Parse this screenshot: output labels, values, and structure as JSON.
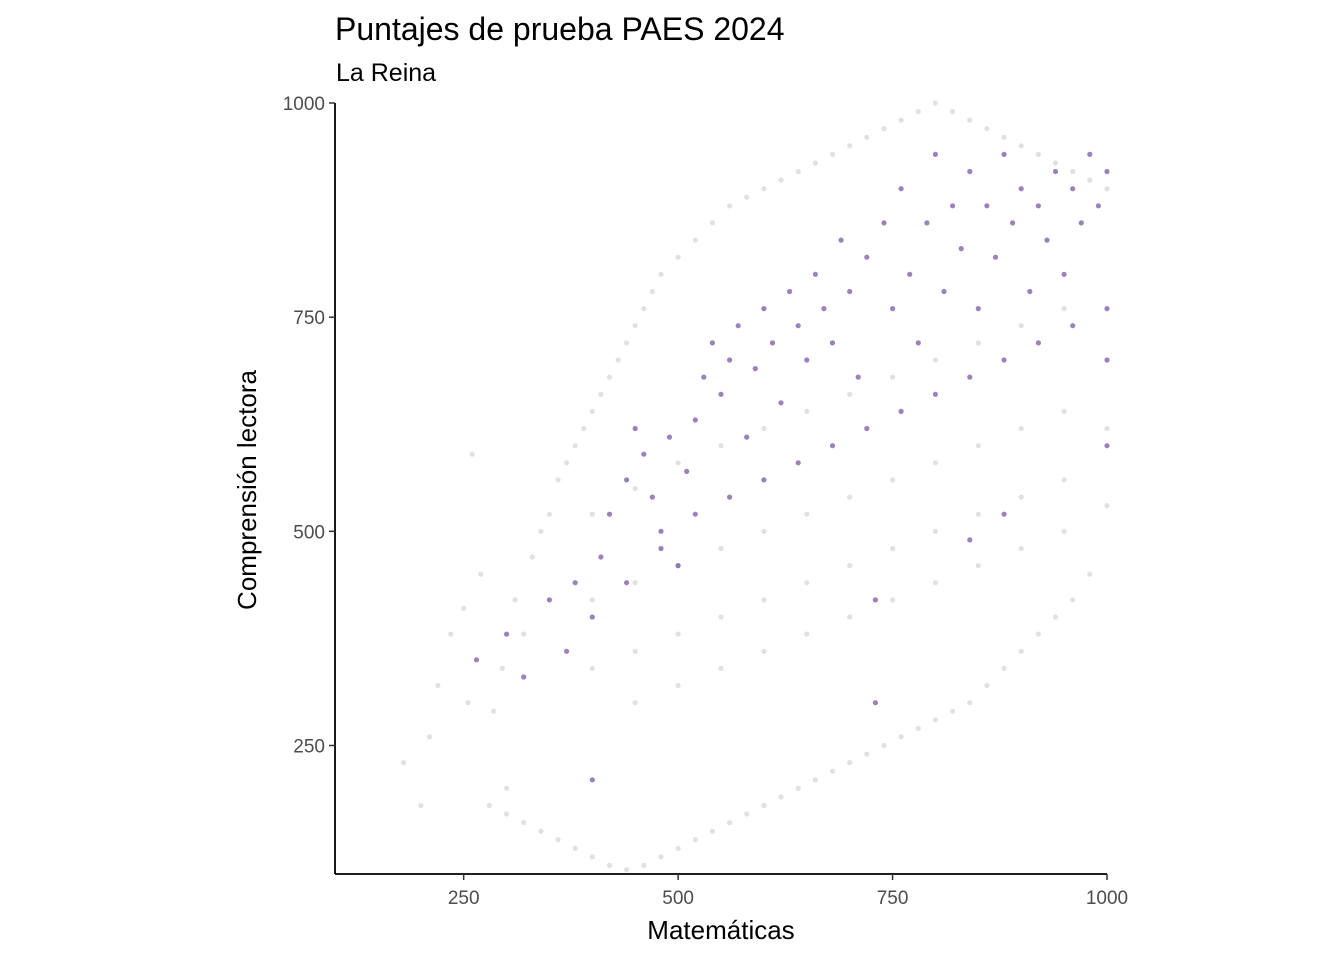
{
  "chart_data": {
    "type": "scatter",
    "title": "Puntajes de prueba PAES 2024",
    "subtitle": "La Reina",
    "xlabel": "Matemáticas",
    "ylabel": "Comprensión lectora",
    "xlim": [
      100,
      1000
    ],
    "ylim": [
      100,
      1000
    ],
    "x_ticks": [
      250,
      500,
      750,
      1000
    ],
    "y_ticks": [
      250,
      500,
      750,
      1000
    ],
    "grid": false,
    "legend": "none",
    "colors": {
      "highlight": "#5a2d8c",
      "background": "#c8c8c8",
      "axis": "#000000",
      "tick_label": "#4d4d4d"
    },
    "series": [
      {
        "role": "background-all-communes",
        "points": [
          [
            180,
            230
          ],
          [
            200,
            180
          ],
          [
            210,
            260
          ],
          [
            220,
            320
          ],
          [
            235,
            380
          ],
          [
            250,
            410
          ],
          [
            255,
            300
          ],
          [
            260,
            590
          ],
          [
            270,
            450
          ],
          [
            285,
            290
          ],
          [
            295,
            340
          ],
          [
            300,
            200
          ],
          [
            310,
            420
          ],
          [
            320,
            380
          ],
          [
            330,
            470
          ],
          [
            340,
            500
          ],
          [
            350,
            520
          ],
          [
            360,
            560
          ],
          [
            370,
            580
          ],
          [
            380,
            600
          ],
          [
            390,
            620
          ],
          [
            400,
            640
          ],
          [
            410,
            660
          ],
          [
            420,
            680
          ],
          [
            430,
            700
          ],
          [
            440,
            720
          ],
          [
            450,
            740
          ],
          [
            460,
            760
          ],
          [
            470,
            780
          ],
          [
            480,
            800
          ],
          [
            500,
            820
          ],
          [
            520,
            840
          ],
          [
            540,
            860
          ],
          [
            560,
            880
          ],
          [
            580,
            890
          ],
          [
            600,
            900
          ],
          [
            620,
            910
          ],
          [
            640,
            920
          ],
          [
            660,
            930
          ],
          [
            680,
            940
          ],
          [
            700,
            950
          ],
          [
            720,
            960
          ],
          [
            740,
            970
          ],
          [
            760,
            980
          ],
          [
            780,
            990
          ],
          [
            800,
            1000
          ],
          [
            820,
            990
          ],
          [
            840,
            980
          ],
          [
            860,
            970
          ],
          [
            880,
            960
          ],
          [
            900,
            950
          ],
          [
            920,
            940
          ],
          [
            940,
            930
          ],
          [
            960,
            920
          ],
          [
            980,
            910
          ],
          [
            1000,
            900
          ],
          [
            1000,
            620
          ],
          [
            1000,
            530
          ],
          [
            980,
            450
          ],
          [
            960,
            420
          ],
          [
            940,
            400
          ],
          [
            920,
            380
          ],
          [
            900,
            360
          ],
          [
            880,
            340
          ],
          [
            860,
            320
          ],
          [
            840,
            300
          ],
          [
            820,
            290
          ],
          [
            800,
            280
          ],
          [
            780,
            270
          ],
          [
            760,
            260
          ],
          [
            740,
            250
          ],
          [
            720,
            240
          ],
          [
            700,
            230
          ],
          [
            680,
            220
          ],
          [
            660,
            210
          ],
          [
            640,
            200
          ],
          [
            620,
            190
          ],
          [
            600,
            180
          ],
          [
            580,
            170
          ],
          [
            560,
            160
          ],
          [
            540,
            150
          ],
          [
            520,
            140
          ],
          [
            500,
            130
          ],
          [
            480,
            120
          ],
          [
            460,
            110
          ],
          [
            440,
            105
          ],
          [
            420,
            110
          ],
          [
            400,
            120
          ],
          [
            380,
            130
          ],
          [
            360,
            140
          ],
          [
            340,
            150
          ],
          [
            320,
            160
          ],
          [
            300,
            170
          ],
          [
            280,
            180
          ],
          [
            400,
            520
          ],
          [
            450,
            550
          ],
          [
            500,
            580
          ],
          [
            550,
            600
          ],
          [
            600,
            620
          ],
          [
            650,
            640
          ],
          [
            700,
            660
          ],
          [
            750,
            680
          ],
          [
            800,
            700
          ],
          [
            850,
            720
          ],
          [
            900,
            740
          ],
          [
            950,
            760
          ],
          [
            400,
            420
          ],
          [
            450,
            440
          ],
          [
            500,
            460
          ],
          [
            550,
            480
          ],
          [
            600,
            500
          ],
          [
            650,
            520
          ],
          [
            700,
            540
          ],
          [
            750,
            560
          ],
          [
            800,
            580
          ],
          [
            850,
            600
          ],
          [
            900,
            620
          ],
          [
            950,
            640
          ],
          [
            400,
            340
          ],
          [
            450,
            360
          ],
          [
            500,
            380
          ],
          [
            550,
            400
          ],
          [
            600,
            420
          ],
          [
            650,
            440
          ],
          [
            700,
            460
          ],
          [
            750,
            480
          ],
          [
            800,
            500
          ],
          [
            850,
            520
          ],
          [
            900,
            540
          ],
          [
            950,
            560
          ],
          [
            450,
            300
          ],
          [
            500,
            320
          ],
          [
            550,
            340
          ],
          [
            600,
            360
          ],
          [
            650,
            380
          ],
          [
            700,
            400
          ],
          [
            750,
            420
          ],
          [
            800,
            440
          ],
          [
            850,
            460
          ],
          [
            900,
            480
          ],
          [
            950,
            500
          ]
        ]
      },
      {
        "role": "highlight-la-reina",
        "name": "La Reina",
        "points": [
          [
            265,
            350
          ],
          [
            300,
            380
          ],
          [
            320,
            330
          ],
          [
            350,
            420
          ],
          [
            370,
            360
          ],
          [
            380,
            440
          ],
          [
            400,
            210
          ],
          [
            410,
            470
          ],
          [
            420,
            520
          ],
          [
            440,
            560
          ],
          [
            450,
            620
          ],
          [
            460,
            590
          ],
          [
            470,
            540
          ],
          [
            480,
            500
          ],
          [
            490,
            610
          ],
          [
            500,
            460
          ],
          [
            510,
            570
          ],
          [
            520,
            630
          ],
          [
            530,
            680
          ],
          [
            540,
            720
          ],
          [
            550,
            660
          ],
          [
            560,
            700
          ],
          [
            570,
            740
          ],
          [
            580,
            610
          ],
          [
            590,
            690
          ],
          [
            600,
            760
          ],
          [
            610,
            720
          ],
          [
            620,
            650
          ],
          [
            630,
            780
          ],
          [
            640,
            740
          ],
          [
            650,
            700
          ],
          [
            660,
            800
          ],
          [
            670,
            760
          ],
          [
            680,
            720
          ],
          [
            690,
            840
          ],
          [
            700,
            780
          ],
          [
            710,
            680
          ],
          [
            720,
            820
          ],
          [
            730,
            300
          ],
          [
            740,
            860
          ],
          [
            750,
            760
          ],
          [
            760,
            900
          ],
          [
            770,
            800
          ],
          [
            780,
            720
          ],
          [
            790,
            860
          ],
          [
            800,
            940
          ],
          [
            810,
            780
          ],
          [
            820,
            880
          ],
          [
            830,
            830
          ],
          [
            840,
            920
          ],
          [
            850,
            760
          ],
          [
            860,
            880
          ],
          [
            870,
            820
          ],
          [
            880,
            940
          ],
          [
            890,
            860
          ],
          [
            900,
            900
          ],
          [
            910,
            780
          ],
          [
            920,
            880
          ],
          [
            930,
            840
          ],
          [
            940,
            920
          ],
          [
            950,
            800
          ],
          [
            960,
            900
          ],
          [
            970,
            860
          ],
          [
            980,
            940
          ],
          [
            990,
            880
          ],
          [
            1000,
            920
          ],
          [
            1000,
            760
          ],
          [
            1000,
            600
          ],
          [
            1000,
            700
          ],
          [
            960,
            740
          ],
          [
            920,
            720
          ],
          [
            880,
            700
          ],
          [
            840,
            680
          ],
          [
            800,
            660
          ],
          [
            760,
            640
          ],
          [
            720,
            620
          ],
          [
            680,
            600
          ],
          [
            640,
            580
          ],
          [
            600,
            560
          ],
          [
            560,
            540
          ],
          [
            520,
            520
          ],
          [
            480,
            480
          ],
          [
            440,
            440
          ],
          [
            400,
            400
          ],
          [
            880,
            520
          ],
          [
            840,
            490
          ],
          [
            730,
            420
          ]
        ]
      }
    ]
  }
}
